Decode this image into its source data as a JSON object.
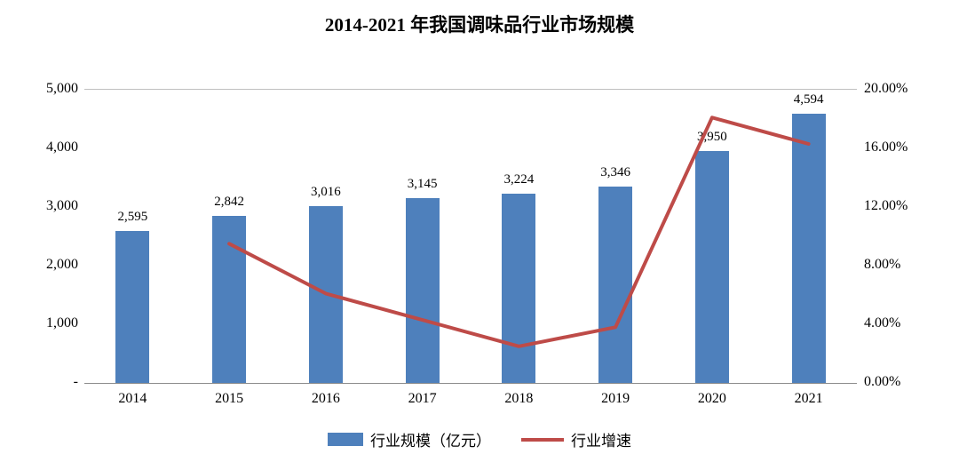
{
  "title": "2014-2021 年我国调味品行业市场规模",
  "chart_data": {
    "type": "bar+line",
    "title": "2014-2021 年我国调味品行业市场规模",
    "categories": [
      "2014",
      "2015",
      "2016",
      "2017",
      "2018",
      "2019",
      "2020",
      "2021"
    ],
    "series": [
      {
        "name": "行业规模（亿元）",
        "type": "bar",
        "axis": "left",
        "color": "#4e80bc",
        "values": [
          2595,
          2842,
          3016,
          3145,
          3224,
          3346,
          3950,
          4594
        ],
        "labels": [
          "2,595",
          "2,842",
          "3,016",
          "3,145",
          "3,224",
          "3,346",
          "3,950",
          "4,594"
        ]
      },
      {
        "name": "行业增速",
        "type": "line",
        "axis": "right",
        "color": "#be4b48",
        "values": [
          null,
          9.5,
          6.1,
          4.3,
          2.5,
          3.8,
          18.1,
          16.3
        ]
      }
    ],
    "left_axis": {
      "min": 0,
      "max": 5000,
      "ticks": [
        "5,000",
        "4,000",
        "3,000",
        "2,000",
        "1,000",
        "-"
      ]
    },
    "right_axis": {
      "min": 0,
      "max": 20,
      "ticks": [
        "20.00%",
        "16.00%",
        "12.00%",
        "8.00%",
        "4.00%",
        "0.00%"
      ]
    },
    "legend_position": "bottom",
    "grid": false
  }
}
